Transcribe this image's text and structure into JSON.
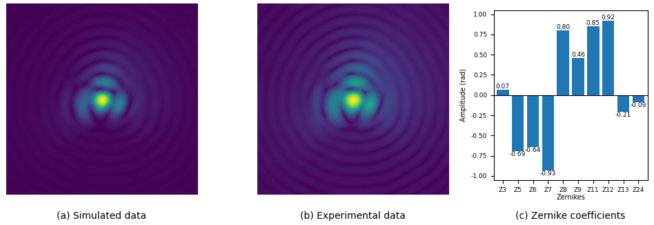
{
  "chart_data": [
    {
      "type": "image",
      "caption": "(a) Simulated data"
    },
    {
      "type": "image",
      "caption": "(b) Experimental data"
    },
    {
      "type": "bar",
      "caption": "(c) Zernike coefficients",
      "x_label": "Zernikes",
      "y_label": "Amplitude (rad)",
      "categories": [
        "Z3",
        "Z5",
        "Z6",
        "Z7",
        "Z8",
        "Z9",
        "Z11",
        "Z12",
        "Z13",
        "Z24"
      ],
      "values": [
        0.07,
        -0.69,
        -0.64,
        -0.93,
        0.8,
        0.46,
        0.85,
        0.92,
        -0.21,
        -0.09
      ],
      "value_labels": [
        "0.07",
        "-0.69",
        "-0.64",
        "-0.93",
        "0.80",
        "0.46",
        "0.85",
        "0.92",
        "-0.21",
        "-0.09"
      ],
      "color": "#1f77b4",
      "ylim": [
        -1.05,
        1.05
      ],
      "yticks": [
        {
          "value": -1,
          "label": "-1.00"
        },
        {
          "value": -0.75,
          "label": "-0.75"
        },
        {
          "value": -0.5,
          "label": "-0.50"
        },
        {
          "value": -0.25,
          "label": "-0.25"
        },
        {
          "value": 0,
          "label": "0.00"
        },
        {
          "value": 0.25,
          "label": "0.25"
        },
        {
          "value": 0.5,
          "label": "0.50"
        },
        {
          "value": 0.75,
          "label": "0.75"
        },
        {
          "value": 1,
          "label": "1.00"
        }
      ],
      "grid": false,
      "data_labels": true
    }
  ]
}
